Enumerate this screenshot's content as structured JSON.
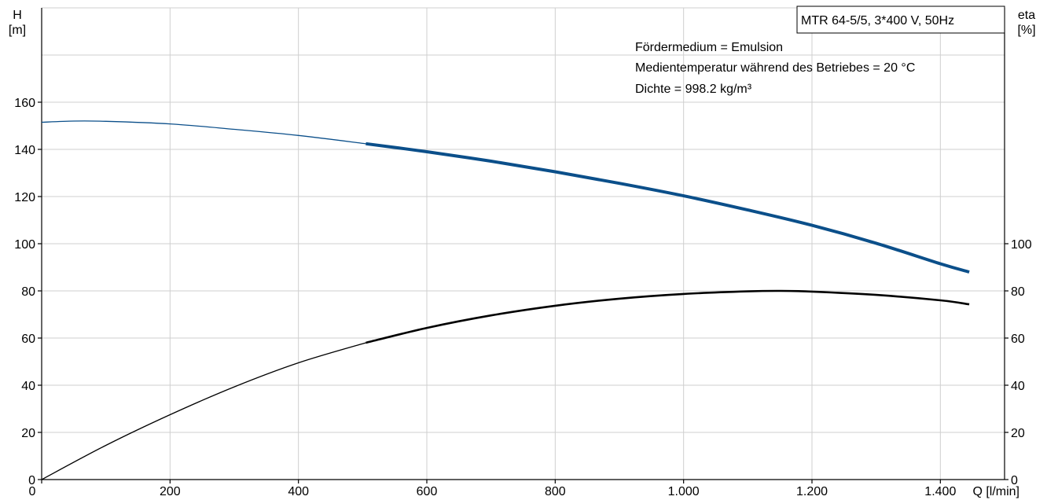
{
  "chart_data": {
    "type": "line",
    "title": "MTR 64-5/5, 3*400 V, 50Hz",
    "notes": [
      "Fördermedium = Emulsion",
      "Medientemperatur während des Betriebes = 20 °C",
      "Dichte = 998.2 kg/m³"
    ],
    "x_axis": {
      "label": "Q [l/min]",
      "range": [
        0,
        1500
      ],
      "ticks": [
        0,
        200,
        400,
        600,
        800,
        1000,
        1200,
        1400
      ],
      "tick_labels": [
        "0",
        "200",
        "400",
        "600",
        "800",
        "1.000",
        "1.200",
        "1.400"
      ]
    },
    "y_axis_left": {
      "label_line1": "H",
      "label_line2": "[m]",
      "range": [
        0,
        200
      ],
      "ticks": [
        0,
        20,
        40,
        60,
        80,
        100,
        120,
        140,
        160
      ],
      "tick_labels": [
        "0",
        "20",
        "40",
        "60",
        "80",
        "100",
        "120",
        "140",
        "160"
      ]
    },
    "y_axis_right": {
      "label_line1": "eta",
      "label_line2": "[%]",
      "range": [
        0,
        200
      ],
      "ticks": [
        0,
        20,
        40,
        60,
        80,
        100
      ],
      "tick_labels": [
        "0",
        "20",
        "40",
        "60",
        "80",
        "100"
      ]
    },
    "grid": true,
    "series": [
      {
        "id": "H",
        "axis": "left",
        "color": "#0b4f8a",
        "operating_range_start": 505,
        "points": [
          [
            0,
            151.5
          ],
          [
            50,
            152
          ],
          [
            100,
            151.9
          ],
          [
            200,
            150.8
          ],
          [
            300,
            148.5
          ],
          [
            400,
            145.9
          ],
          [
            505,
            142.4
          ],
          [
            600,
            139
          ],
          [
            700,
            135
          ],
          [
            800,
            130.5
          ],
          [
            900,
            125.6
          ],
          [
            1000,
            120.3
          ],
          [
            1100,
            114.3
          ],
          [
            1200,
            107.8
          ],
          [
            1300,
            100.2
          ],
          [
            1400,
            91.5
          ],
          [
            1445,
            88
          ]
        ]
      },
      {
        "id": "eta",
        "axis": "right",
        "color": "#000000",
        "operating_range_start": 505,
        "points": [
          [
            0,
            0
          ],
          [
            100,
            14.5
          ],
          [
            200,
            27.5
          ],
          [
            300,
            39.3
          ],
          [
            400,
            49.5
          ],
          [
            505,
            58
          ],
          [
            600,
            64.3
          ],
          [
            700,
            69.6
          ],
          [
            800,
            73.7
          ],
          [
            900,
            76.7
          ],
          [
            1000,
            78.7
          ],
          [
            1100,
            79.8
          ],
          [
            1150,
            80
          ],
          [
            1200,
            79.7
          ],
          [
            1300,
            78.3
          ],
          [
            1400,
            76
          ],
          [
            1445,
            74.3
          ]
        ]
      }
    ]
  }
}
